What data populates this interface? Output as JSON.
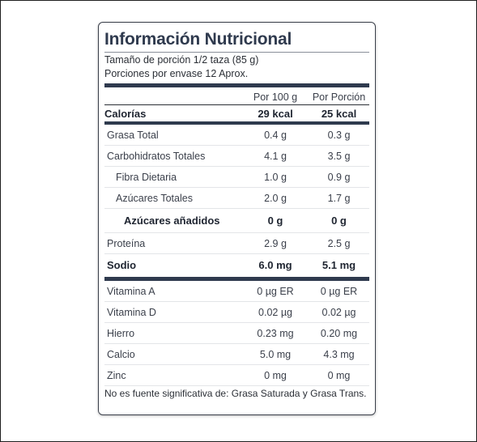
{
  "title": "Información Nutricional",
  "serving_size": "Tamaño de porción 1/2 taza (85 g)",
  "servings_per_container": "Porciones por envase 12 Aprox.",
  "columns": {
    "per100": "Por 100 g",
    "perServing": "Por Porción"
  },
  "calories": {
    "label": "Calorías",
    "per100": "29 kcal",
    "perServing": "25 kcal"
  },
  "nutrients": [
    {
      "label": "Grasa Total",
      "per100": "0.4 g",
      "perServing": "0.3 g"
    },
    {
      "label": "Carbohidratos Totales",
      "per100": "4.1 g",
      "perServing": "3.5 g"
    },
    {
      "label": "Fibra Dietaria",
      "per100": "1.0 g",
      "perServing": "0.9 g"
    },
    {
      "label": "Azúcares Totales",
      "per100": "2.0 g",
      "perServing": "1.7 g"
    },
    {
      "label": "Azúcares añadidos",
      "per100": "0 g",
      "perServing": "0 g"
    },
    {
      "label": "Proteína",
      "per100": "2.9 g",
      "perServing": "2.5 g"
    },
    {
      "label": "Sodio",
      "per100": "6.0 mg",
      "perServing": "5.1 mg"
    }
  ],
  "vitamins": [
    {
      "label": "Vitamina A",
      "per100": "0 µg ER",
      "perServing": "0 µg ER"
    },
    {
      "label": "Vitamina D",
      "per100": "0.02 µg",
      "perServing": "0.02 µg"
    },
    {
      "label": "Hierro",
      "per100": "0.23 mg",
      "perServing": "0.20 mg"
    },
    {
      "label": "Calcio",
      "per100": "5.0 mg",
      "perServing": "4.3 mg"
    },
    {
      "label": "Zinc",
      "per100": "0 mg",
      "perServing": "0 mg"
    }
  ],
  "footnote": "No es fuente significativa de: Grasa Saturada y Grasa Trans.",
  "colors": {
    "heading": "#2f3a4e",
    "bar": "#2f3a4e",
    "text": "#2b2f36"
  }
}
